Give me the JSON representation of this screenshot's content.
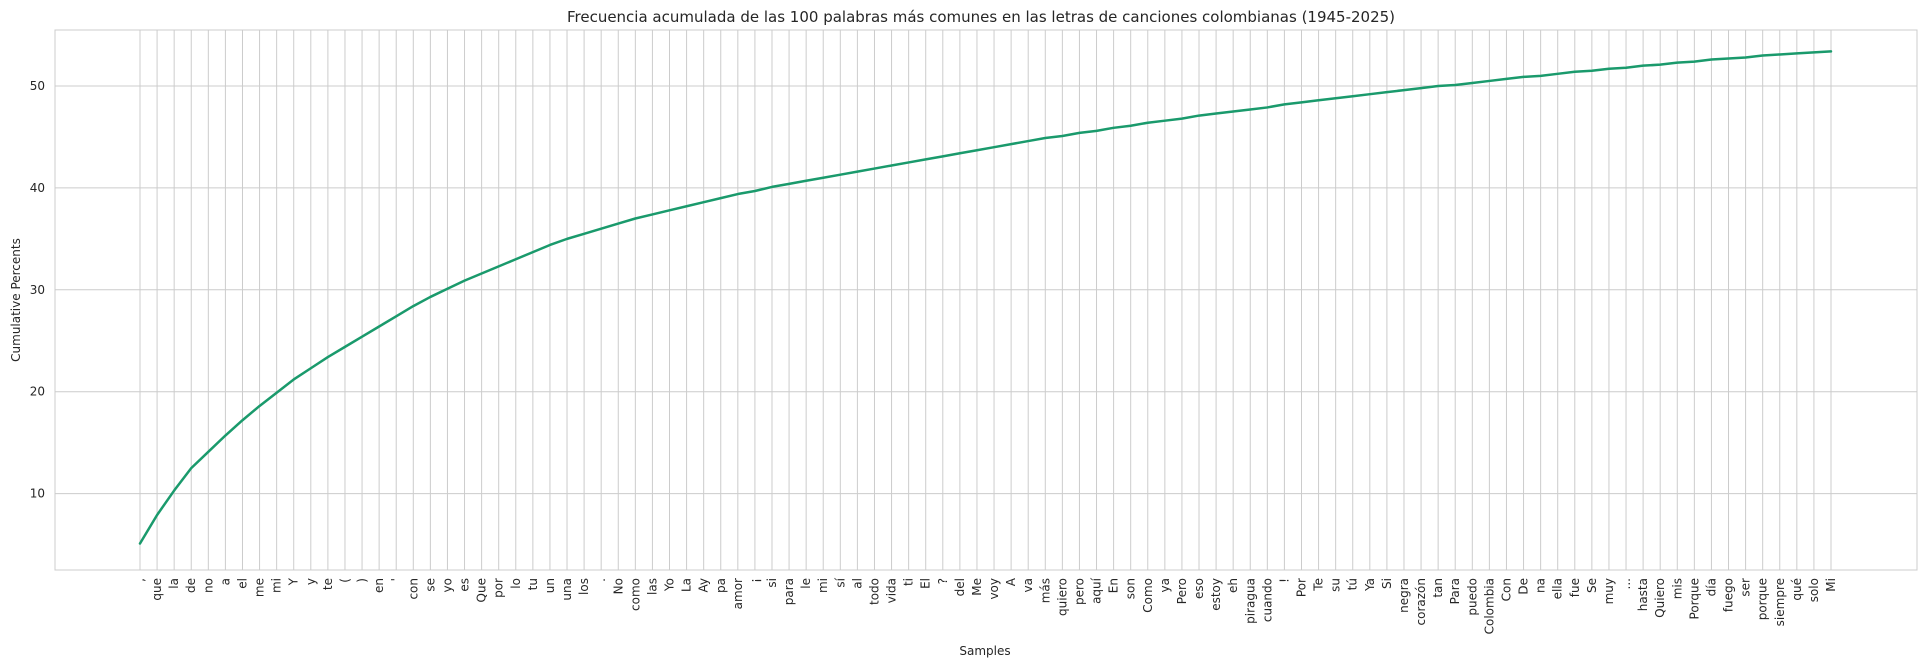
{
  "chart_data": {
    "type": "line",
    "title": "Frecuencia acumulada de las 100 palabras más comunes en las letras de canciones colombianas (1945-2025)",
    "xlabel": "Samples",
    "ylabel": "Cumulative Percents",
    "ylim": [
      2.5,
      55.5
    ],
    "yticks": [
      10,
      20,
      30,
      40,
      50
    ],
    "grid": true,
    "legend": "none",
    "line_color": "#1a9a6c",
    "categories": [
      ",",
      "que",
      "la",
      "de",
      "no",
      "a",
      "el",
      "me",
      "mi",
      "Y",
      "y",
      "te",
      "(",
      ")",
      "en",
      "'",
      "con",
      "se",
      "yo",
      "es",
      "Que",
      "por",
      "lo",
      "tu",
      "un",
      "una",
      "los",
      ".",
      "No",
      "como",
      "las",
      "Yo",
      "La",
      "Ay",
      "pa",
      "amor",
      "¡",
      "si",
      "para",
      "le",
      "mi",
      "sí",
      "al",
      "todo",
      "vida",
      "ti",
      "El",
      "?",
      "del",
      "Me",
      "voy",
      "A",
      "va",
      "más",
      "quiero",
      "pero",
      "aquí",
      "En",
      "son",
      "Como",
      "ya",
      "Pero",
      "eso",
      "estoy",
      "eh",
      "piragua",
      "cuando",
      "!",
      "Por",
      "Te",
      "su",
      "tú",
      "Ya",
      "Si",
      "negra",
      "corazón",
      "tan",
      "Para",
      "puedo",
      "Colombia",
      "Con",
      "De",
      "na",
      "ella",
      "fue",
      "Se",
      "muy",
      "...",
      "hasta",
      "Quiero",
      "mis",
      "Porque",
      "día",
      "fuego",
      "ser",
      "porque",
      "siempre",
      "qué",
      "solo",
      "Mi"
    ],
    "series": [
      {
        "values": [
          5.1,
          7.9,
          10.3,
          12.5,
          14.1,
          15.7,
          17.2,
          18.6,
          19.9,
          21.2,
          22.3,
          23.4,
          24.4,
          25.4,
          26.4,
          27.4,
          28.4,
          29.3,
          30.1,
          30.9,
          31.6,
          32.3,
          33.0,
          33.7,
          34.4,
          35.0,
          35.5,
          36.0,
          36.5,
          37.0,
          37.4,
          37.8,
          38.2,
          38.6,
          39.0,
          39.4,
          39.7,
          40.1,
          40.4,
          40.7,
          41.0,
          41.3,
          41.6,
          41.9,
          42.2,
          42.5,
          42.8,
          43.1,
          43.4,
          43.7,
          44.0,
          44.3,
          44.6,
          44.9,
          45.1,
          45.4,
          45.6,
          45.9,
          46.1,
          46.4,
          46.6,
          46.8,
          47.1,
          47.3,
          47.5,
          47.7,
          47.9,
          48.2,
          48.4,
          48.6,
          48.8,
          49.0,
          49.2,
          49.4,
          49.6,
          49.8,
          50.0,
          50.1,
          50.3,
          50.5,
          50.7,
          50.9,
          51.0,
          51.2,
          51.4,
          51.5,
          51.7,
          51.8,
          52.0,
          52.1,
          52.3,
          52.4,
          52.6,
          52.7,
          52.8,
          53.0,
          53.1,
          53.2,
          53.3,
          53.4
        ]
      }
    ]
  }
}
